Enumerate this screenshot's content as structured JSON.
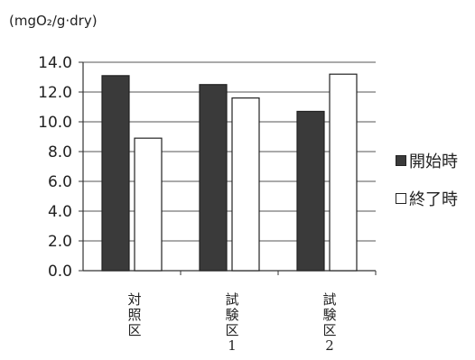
{
  "chart_data": {
    "type": "bar",
    "unit_label": "(mgO₂/g·dry)",
    "categories": [
      {
        "label": "対照区",
        "chars": [
          "対",
          "照",
          "区"
        ]
      },
      {
        "label": "試験区1",
        "chars": [
          "試",
          "験",
          "区",
          "1"
        ]
      },
      {
        "label": "試験区2",
        "chars": [
          "試",
          "験",
          "区",
          "2"
        ]
      }
    ],
    "series": [
      {
        "name": "開始時",
        "color": "#3a3a3a",
        "values": [
          13.1,
          12.5,
          10.7
        ]
      },
      {
        "name": "終了時",
        "color": "#ffffff",
        "values": [
          8.9,
          11.6,
          13.2
        ]
      }
    ],
    "y_ticks": [
      "0.0",
      "2.0",
      "4.0",
      "6.0",
      "8.0",
      "10.0",
      "12.0",
      "14.0"
    ],
    "ylim": [
      0,
      14
    ],
    "grid": true,
    "legend_position": "right"
  }
}
